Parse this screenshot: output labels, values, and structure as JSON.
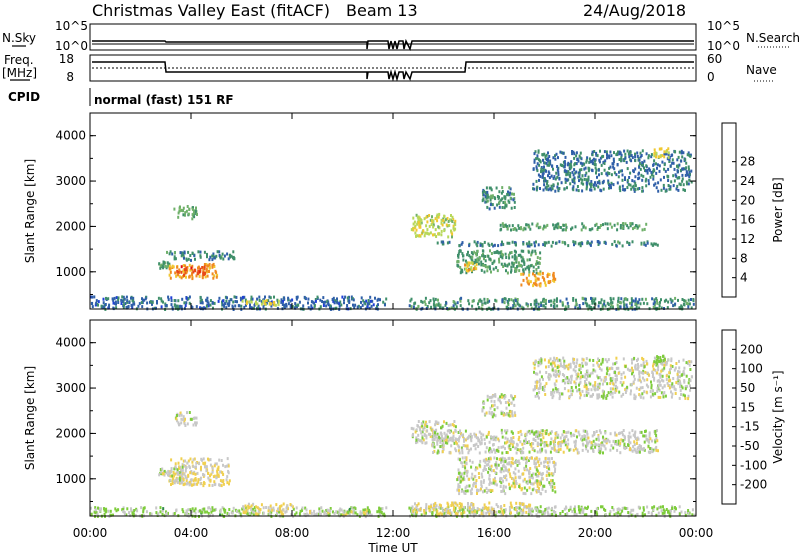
{
  "header": {
    "title": "Christmas Valley East (fitACF)",
    "beam": "Beam 13",
    "date": "24/Aug/2018"
  },
  "status_panel": {
    "nsky_label": "N.Sky",
    "nsky_ticks": [
      "10^5",
      "10^0"
    ],
    "nsearch_label": "N.Search",
    "nsearch_ticks": [
      "10^5",
      "10^0"
    ],
    "freq_label": "Freq.",
    "freq_unit": "[MHz]",
    "freq_ticks": [
      "18",
      "8"
    ],
    "nave_label": "Nave",
    "nave_ticks": [
      "60",
      "0"
    ],
    "cpid_label": "CPID",
    "cpid_value": "normal (fast) 151 RF"
  },
  "colors": {
    "power": [
      "#1f3fd6",
      "#2f5fa8",
      "#3f8f6a",
      "#6fb06a",
      "#b8d85a",
      "#f0c830",
      "#f08a20",
      "#e84818",
      "#e01010"
    ],
    "velocity": [
      "#2040c0",
      "#2e6e9a",
      "#2f8a4a",
      "#7ecc3c",
      "#c8c8c8",
      "#f0d050",
      "#f4a020",
      "#ee6020",
      "#e01818"
    ]
  },
  "chart_data": [
    {
      "type": "heatmap",
      "name": "power",
      "ylabel": "Slant Range [km]",
      "xlabel": "Time UT",
      "x_ticks": [
        "00:00",
        "04:00",
        "08:00",
        "12:00",
        "16:00",
        "20:00",
        "00:00"
      ],
      "y_ticks": [
        "1000",
        "2000",
        "3000",
        "4000"
      ],
      "ylim": [
        180,
        4500
      ],
      "xlim_hours": [
        0,
        24
      ],
      "colorbar": {
        "label": "Power [dB]",
        "ticks": [
          "4",
          "8",
          "12",
          "16",
          "20",
          "24",
          "28"
        ],
        "range": [
          0,
          32
        ]
      },
      "features": [
        {
          "t0": 3.3,
          "t1": 4.2,
          "r0": 2200,
          "r1": 2500,
          "v": 12
        },
        {
          "t0": 2.7,
          "t1": 3.2,
          "r0": 1100,
          "r1": 1250,
          "v": 10
        },
        {
          "t0": 3.0,
          "t1": 5.7,
          "r0": 1280,
          "r1": 1480,
          "v": 8
        },
        {
          "t0": 3.1,
          "t1": 5.0,
          "r0": 880,
          "r1": 1200,
          "v": 22
        },
        {
          "t0": 3.3,
          "t1": 4.6,
          "r0": 950,
          "r1": 1150,
          "v": 26
        },
        {
          "t0": 0.0,
          "t1": 11.7,
          "r0": 200,
          "r1": 480,
          "v": 6
        },
        {
          "t0": 6.0,
          "t1": 7.6,
          "r0": 280,
          "r1": 400,
          "v": 18
        },
        {
          "t0": 12.6,
          "t1": 23.9,
          "r0": 200,
          "r1": 450,
          "v": 9
        },
        {
          "t0": 12.7,
          "t1": 14.5,
          "r0": 1800,
          "r1": 2300,
          "v": 16
        },
        {
          "t0": 13.5,
          "t1": 22.5,
          "r0": 1600,
          "r1": 1700,
          "v": 8
        },
        {
          "t0": 14.5,
          "t1": 17.8,
          "r0": 1000,
          "r1": 1500,
          "v": 10
        },
        {
          "t0": 14.8,
          "t1": 15.3,
          "r0": 1050,
          "r1": 1250,
          "v": 20
        },
        {
          "t0": 17.0,
          "t1": 18.4,
          "r0": 700,
          "r1": 1000,
          "v": 22
        },
        {
          "t0": 16.2,
          "t1": 22.0,
          "r0": 1950,
          "r1": 2100,
          "v": 10
        },
        {
          "t0": 15.5,
          "t1": 16.8,
          "r0": 2400,
          "r1": 2900,
          "v": 9
        },
        {
          "t0": 17.5,
          "t1": 23.8,
          "r0": 2800,
          "r1": 3700,
          "v": 7
        },
        {
          "t0": 22.3,
          "t1": 22.9,
          "r0": 3550,
          "r1": 3750,
          "v": 18
        }
      ]
    },
    {
      "type": "heatmap",
      "name": "velocity",
      "ylabel": "Slant Range [km]",
      "xlabel": "Time UT",
      "x_ticks": [
        "00:00",
        "04:00",
        "08:00",
        "12:00",
        "16:00",
        "20:00",
        "00:00"
      ],
      "y_ticks": [
        "1000",
        "2000",
        "3000",
        "4000"
      ],
      "ylim": [
        180,
        4500
      ],
      "xlim_hours": [
        0,
        24
      ],
      "colorbar": {
        "label": "Velocity [m s⁻¹]",
        "ticks": [
          "200",
          "100",
          "50",
          "15",
          "-15",
          "-50",
          "-100",
          "-200"
        ],
        "range": [
          -250,
          250
        ]
      },
      "features": [
        {
          "t0": 3.3,
          "t1": 4.2,
          "r0": 2200,
          "r1": 2500,
          "v": 0
        },
        {
          "t0": 2.7,
          "t1": 3.2,
          "r0": 1100,
          "r1": 1250,
          "v": 0
        },
        {
          "t0": 3.1,
          "t1": 5.5,
          "r0": 880,
          "r1": 1480,
          "v": 30
        },
        {
          "t0": 3.1,
          "t1": 4.0,
          "r0": 900,
          "r1": 1300,
          "v": 0
        },
        {
          "t0": 0.0,
          "t1": 11.7,
          "r0": 200,
          "r1": 400,
          "v": -40
        },
        {
          "t0": 6.0,
          "t1": 8.0,
          "r0": 250,
          "r1": 480,
          "v": 30
        },
        {
          "t0": 8.5,
          "t1": 11.0,
          "r0": 220,
          "r1": 350,
          "v": 0
        },
        {
          "t0": 12.6,
          "t1": 23.9,
          "r0": 200,
          "r1": 420,
          "v": -30
        },
        {
          "t0": 12.7,
          "t1": 17.5,
          "r0": 250,
          "r1": 500,
          "v": 30
        },
        {
          "t0": 12.7,
          "t1": 14.5,
          "r0": 1800,
          "r1": 2300,
          "v": 0
        },
        {
          "t0": 13.5,
          "t1": 22.5,
          "r0": 1600,
          "r1": 2100,
          "v": 0
        },
        {
          "t0": 14.5,
          "t1": 18.4,
          "r0": 700,
          "r1": 1500,
          "v": 0
        },
        {
          "t0": 15.5,
          "t1": 16.8,
          "r0": 2400,
          "r1": 2900,
          "v": 0
        },
        {
          "t0": 17.5,
          "t1": 23.8,
          "r0": 2800,
          "r1": 3700,
          "v": 0
        },
        {
          "t0": 22.3,
          "t1": 22.9,
          "r0": 3550,
          "r1": 3750,
          "v": -40
        }
      ]
    }
  ]
}
